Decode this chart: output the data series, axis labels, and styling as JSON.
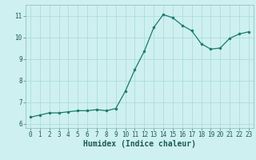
{
  "x": [
    0,
    1,
    2,
    3,
    4,
    5,
    6,
    7,
    8,
    9,
    10,
    11,
    12,
    13,
    14,
    15,
    16,
    17,
    18,
    19,
    20,
    21,
    22,
    23
  ],
  "y": [
    6.3,
    6.4,
    6.5,
    6.5,
    6.55,
    6.6,
    6.6,
    6.65,
    6.6,
    6.7,
    7.5,
    8.5,
    9.35,
    10.45,
    11.05,
    10.9,
    10.55,
    10.3,
    9.7,
    9.45,
    9.5,
    9.95,
    10.15,
    10.25
  ],
  "line_color": "#1a7a6e",
  "marker_color": "#1a7a6e",
  "bg_color": "#cff0f0",
  "grid_color": "#aadddd",
  "xlabel": "Humidex (Indice chaleur)",
  "xlim": [
    -0.5,
    23.5
  ],
  "ylim": [
    5.8,
    11.5
  ],
  "yticks": [
    6,
    7,
    8,
    9,
    10,
    11
  ],
  "xticks": [
    0,
    1,
    2,
    3,
    4,
    5,
    6,
    7,
    8,
    9,
    10,
    11,
    12,
    13,
    14,
    15,
    16,
    17,
    18,
    19,
    20,
    21,
    22,
    23
  ],
  "tick_fontsize": 5.5,
  "xlabel_fontsize": 7,
  "line_width": 0.9,
  "marker_size": 2.0
}
